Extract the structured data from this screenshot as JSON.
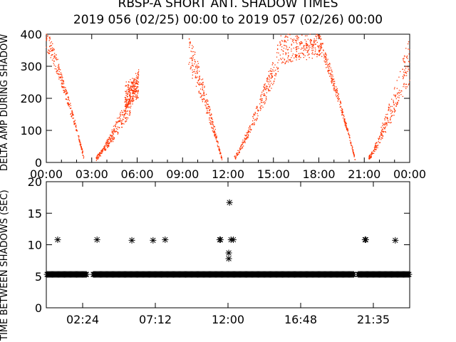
{
  "chart_data": [
    {
      "type": "scatter",
      "title_line1": "RBSP-A SHORT ANT. SHADOW TIMES",
      "title_line2": "2019 056 (02/25) 00:00 to 2019 057 (02/26) 00:00",
      "ylabel": "DELTA AMP DURING SHADOW",
      "xlabel": "",
      "xlim_hours": [
        0,
        24
      ],
      "ylim": [
        0,
        400
      ],
      "x_tick_labels": [
        "00:00",
        "03:00",
        "06:00",
        "09:00",
        "12:00",
        "15:00",
        "18:00",
        "21:00",
        "00:00"
      ],
      "x_tick_hours": [
        0,
        3,
        6,
        9,
        12,
        15,
        18,
        21,
        24
      ],
      "y_tick_labels": [
        "0",
        "100",
        "200",
        "300",
        "400"
      ],
      "y_tick_values": [
        0,
        100,
        200,
        300,
        400
      ],
      "series": [
        {
          "color": "#ff3300",
          "marker": "dot",
          "envelope": [
            {
              "x_range": [
                0.0,
                2.5
              ],
              "y_start": [
                350,
                420
              ],
              "y_end": [
                5,
                20
              ]
            },
            {
              "x_range": [
                3.3,
                5.6
              ],
              "y_start": [
                5,
                20
              ],
              "y_end": [
                150,
                240
              ]
            },
            {
              "x_range": [
                5.2,
                6.1
              ],
              "y_start": [
                150,
                250
              ],
              "y_end": [
                200,
                290
              ]
            },
            {
              "x_range": [
                9.4,
                11.6
              ],
              "y_start": [
                280,
                400
              ],
              "y_end": [
                5,
                15
              ]
            },
            {
              "x_range": [
                12.4,
                15.5
              ],
              "y_start": [
                5,
                20
              ],
              "y_end": [
                300,
                400
              ]
            },
            {
              "x_range": [
                15.5,
                18.2
              ],
              "y_start": [
                300,
                400
              ],
              "y_end": [
                330,
                410
              ]
            },
            {
              "x_range": [
                18.0,
                20.4
              ],
              "y_start": [
                340,
                400
              ],
              "y_end": [
                5,
                15
              ]
            },
            {
              "x_range": [
                21.3,
                24.0
              ],
              "y_start": [
                5,
                20
              ],
              "y_end": [
                250,
                400
              ]
            }
          ]
        }
      ]
    },
    {
      "type": "scatter",
      "ylabel": "TIME BETWEEN SHADOWS (SEC)",
      "xlabel": "",
      "xlim_hours": [
        0,
        24
      ],
      "ylim": [
        0,
        20
      ],
      "x_tick_labels": [
        "02:24",
        "07:12",
        "12:00",
        "16:48",
        "21:35"
      ],
      "x_tick_hours": [
        2.4,
        7.2,
        12.0,
        16.8,
        21.6
      ],
      "y_tick_labels": [
        "0",
        "5",
        "10",
        "15",
        "20"
      ],
      "y_tick_values": [
        0,
        5,
        10,
        15,
        20
      ],
      "series": [
        {
          "color": "#000000",
          "marker": "asterisk",
          "baseline_value": 5.3,
          "baseline_gaps_hours": [
            [
              2.65,
              3.05
            ],
            [
              20.35,
              20.6
            ]
          ],
          "points": [
            {
              "x": 0.75,
              "y": 10.8
            },
            {
              "x": 3.35,
              "y": 10.8
            },
            {
              "x": 5.65,
              "y": 10.7
            },
            {
              "x": 7.05,
              "y": 10.7
            },
            {
              "x": 7.85,
              "y": 10.8
            },
            {
              "x": 11.45,
              "y": 10.8
            },
            {
              "x": 11.5,
              "y": 10.8
            },
            {
              "x": 12.05,
              "y": 8.7
            },
            {
              "x": 12.05,
              "y": 7.8
            },
            {
              "x": 12.1,
              "y": 16.7
            },
            {
              "x": 12.2,
              "y": 10.8
            },
            {
              "x": 12.35,
              "y": 10.8
            },
            {
              "x": 21.05,
              "y": 10.8
            },
            {
              "x": 21.1,
              "y": 10.8
            },
            {
              "x": 23.05,
              "y": 10.7
            }
          ]
        }
      ]
    }
  ]
}
